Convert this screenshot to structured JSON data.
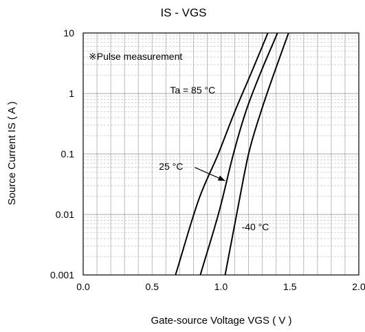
{
  "chart_data": {
    "type": "line",
    "title": "IS - VGS",
    "xlabel": "Gate-source Voltage VGS ( V )",
    "ylabel": "Source Current IS ( A )",
    "xlim": [
      0.0,
      2.0
    ],
    "ylim": [
      0.001,
      10
    ],
    "y_scale": "log",
    "grid": true,
    "x_ticks": [
      {
        "value": 0.0,
        "label": "0.0"
      },
      {
        "value": 0.5,
        "label": "0.5"
      },
      {
        "value": 1.0,
        "label": "1.0"
      },
      {
        "value": 1.5,
        "label": "1.5"
      },
      {
        "value": 2.0,
        "label": "2.0"
      }
    ],
    "y_ticks": [
      {
        "value": 0.001,
        "label": "0.001"
      },
      {
        "value": 0.01,
        "label": "0.01"
      },
      {
        "value": 0.1,
        "label": "0.1"
      },
      {
        "value": 1,
        "label": "1"
      },
      {
        "value": 10,
        "label": "10"
      }
    ],
    "series": [
      {
        "name": "Ta = 85 °C",
        "color": "#000000",
        "x": [
          0.67,
          0.84,
          0.98,
          1.1,
          1.22,
          1.34
        ],
        "y": [
          0.001,
          0.018,
          0.1,
          0.5,
          2.2,
          10
        ]
      },
      {
        "name": "25 °C",
        "color": "#000000",
        "x": [
          0.85,
          0.99,
          1.09,
          1.18,
          1.28,
          1.41
        ],
        "y": [
          0.001,
          0.012,
          0.1,
          0.5,
          2.0,
          10
        ]
      },
      {
        "name": "-40 °C",
        "color": "#000000",
        "x": [
          1.03,
          1.12,
          1.2,
          1.29,
          1.38,
          1.49
        ],
        "y": [
          0.001,
          0.012,
          0.1,
          0.5,
          2.0,
          10
        ]
      }
    ],
    "annotations": [
      {
        "text": "※Pulse measurement",
        "x": 0.04,
        "y": 3.6
      },
      {
        "text": "Ta = 85 °C",
        "x": 0.63,
        "y": 1.0
      },
      {
        "text": "25 °C",
        "x": 0.55,
        "y": 0.055
      },
      {
        "text": "-40 °C",
        "x": 1.15,
        "y": 0.0055
      }
    ],
    "arrow": {
      "from": {
        "x": 0.81,
        "y": 0.06
      },
      "to": {
        "x": 1.03,
        "y": 0.036
      }
    }
  }
}
